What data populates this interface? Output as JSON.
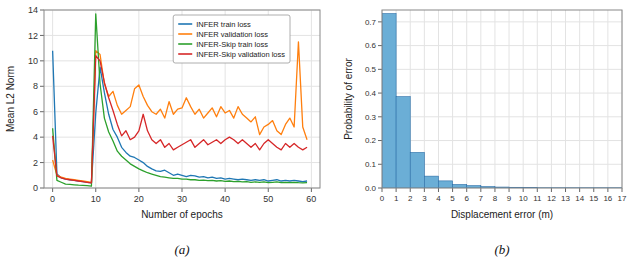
{
  "chart_data": [
    {
      "type": "line",
      "title": "(a)",
      "x_label": "Number of epochs",
      "y_label": "Mean L2 Norm",
      "x": [
        0,
        1,
        2,
        3,
        4,
        5,
        6,
        7,
        8,
        9,
        10,
        11,
        12,
        13,
        14,
        15,
        16,
        17,
        18,
        19,
        20,
        21,
        22,
        23,
        24,
        25,
        26,
        27,
        28,
        29,
        30,
        31,
        32,
        33,
        34,
        35,
        36,
        37,
        38,
        39,
        40,
        41,
        42,
        43,
        44,
        45,
        46,
        47,
        48,
        49,
        50,
        51,
        52,
        53,
        54,
        55,
        56,
        57,
        58,
        59
      ],
      "series": [
        {
          "name": "INFER train loss",
          "color": "#1f77b4",
          "values": [
            10.8,
            1.1,
            0.8,
            0.7,
            0.65,
            0.6,
            0.55,
            0.5,
            0.45,
            0.4,
            5.9,
            9.5,
            7.5,
            5.8,
            4.6,
            4.0,
            3.2,
            2.8,
            2.5,
            2.4,
            2.2,
            2.0,
            1.7,
            1.5,
            1.35,
            1.3,
            1.4,
            1.2,
            1.0,
            1.1,
            1.0,
            0.9,
            1.0,
            0.95,
            0.85,
            0.9,
            0.8,
            0.85,
            0.75,
            0.8,
            0.7,
            0.75,
            0.7,
            0.65,
            0.7,
            0.65,
            0.6,
            0.65,
            0.6,
            0.65,
            0.55,
            0.6,
            0.65,
            0.55,
            0.6,
            0.55,
            0.6,
            0.55,
            0.5,
            0.55
          ]
        },
        {
          "name": "INFER validation loss",
          "color": "#ff7f0e",
          "values": [
            2.2,
            1.0,
            0.85,
            0.75,
            0.7,
            0.65,
            0.6,
            0.55,
            0.5,
            0.45,
            10.8,
            10.5,
            8.2,
            7.2,
            7.6,
            6.5,
            5.8,
            6.1,
            6.4,
            7.8,
            8.1,
            7.2,
            6.5,
            6.0,
            5.8,
            6.2,
            5.5,
            6.8,
            5.8,
            6.2,
            6.3,
            7.1,
            6.4,
            5.8,
            6.2,
            5.5,
            5.9,
            6.3,
            5.6,
            6.4,
            5.9,
            6.1,
            5.5,
            6.4,
            5.8,
            5.5,
            5.2,
            5.6,
            4.2,
            4.8,
            5.0,
            5.3,
            4.5,
            4.2,
            5.0,
            5.5,
            4.8,
            11.5,
            4.8,
            3.8
          ]
        },
        {
          "name": "INFER-Skip train loss",
          "color": "#2ca02c",
          "values": [
            4.7,
            0.6,
            0.45,
            0.3,
            0.28,
            0.25,
            0.22,
            0.2,
            0.18,
            0.15,
            13.7,
            8.2,
            5.5,
            4.4,
            3.7,
            2.9,
            2.5,
            2.2,
            1.9,
            1.7,
            1.5,
            1.35,
            1.2,
            1.1,
            1.0,
            0.9,
            0.85,
            0.8,
            0.75,
            0.75,
            0.7,
            0.7,
            0.65,
            0.65,
            0.6,
            0.62,
            0.58,
            0.6,
            0.55,
            0.58,
            0.52,
            0.55,
            0.5,
            0.52,
            0.48,
            0.5,
            0.45,
            0.48,
            0.45,
            0.48,
            0.42,
            0.45,
            0.48,
            0.42,
            0.45,
            0.42,
            0.45,
            0.42,
            0.4,
            0.42
          ]
        },
        {
          "name": "INFER-Skip validation loss",
          "color": "#d62728",
          "values": [
            4.1,
            0.95,
            0.8,
            0.7,
            0.65,
            0.6,
            0.55,
            0.5,
            0.45,
            0.4,
            10.4,
            10.0,
            8.3,
            7.1,
            6.1,
            5.0,
            4.1,
            4.5,
            3.8,
            4.0,
            4.5,
            5.8,
            4.5,
            3.8,
            3.5,
            3.8,
            3.2,
            3.5,
            3.0,
            3.2,
            3.4,
            3.6,
            3.8,
            3.2,
            3.5,
            3.8,
            3.4,
            3.6,
            3.8,
            3.5,
            3.8,
            4.0,
            3.8,
            3.5,
            3.8,
            3.5,
            3.2,
            3.5,
            3.0,
            3.5,
            3.8,
            3.5,
            3.2,
            3.0,
            3.5,
            3.2,
            3.5,
            3.2,
            3.0,
            3.2
          ]
        }
      ],
      "xlim": [
        -2,
        62
      ],
      "xticks": [
        0,
        10,
        20,
        30,
        40,
        50,
        60
      ],
      "ylim": [
        0,
        14
      ],
      "yticks": [
        0,
        2,
        4,
        6,
        8,
        10,
        12,
        14
      ],
      "grid": true,
      "legend": "upper right"
    },
    {
      "type": "histogram",
      "title": "(b)",
      "x_label": "Displacement error (m)",
      "y_label": "Probability of error",
      "bins": [
        0,
        1,
        2,
        3,
        4,
        5,
        6,
        7,
        8,
        9,
        10,
        11,
        12,
        13,
        14,
        15,
        16,
        17
      ],
      "values": [
        0.735,
        0.385,
        0.15,
        0.05,
        0.03,
        0.015,
        0.01,
        0.006,
        0.004,
        0.003,
        0.002,
        0.001,
        0.001,
        0.001,
        0.001,
        0.001,
        0.001
      ],
      "color": "#6baed6",
      "xlim": [
        0,
        17
      ],
      "xticks": [
        0,
        1,
        2,
        3,
        4,
        5,
        6,
        7,
        8,
        9,
        10,
        11,
        12,
        13,
        14,
        15,
        16,
        17
      ],
      "ylim": [
        0,
        0.75
      ],
      "yticks": [
        {
          "value": 0.0,
          "label": "0.0"
        },
        0.1,
        0.2,
        0.3,
        0.4,
        0.5,
        0.6,
        0.7
      ],
      "grid": true
    }
  ]
}
